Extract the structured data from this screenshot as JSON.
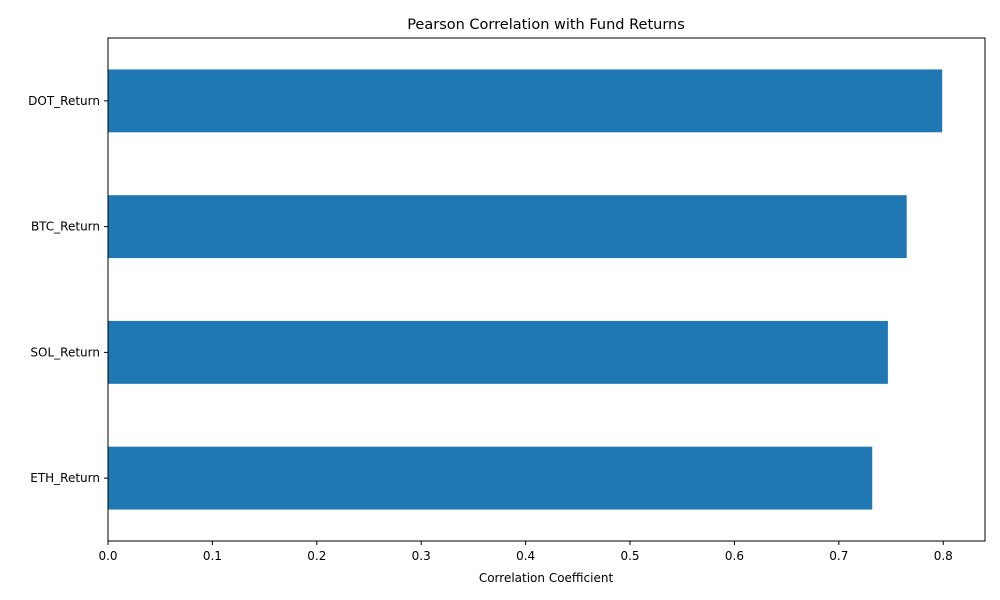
{
  "chart_data": {
    "type": "bar",
    "orientation": "horizontal",
    "title": "Pearson Correlation with Fund Returns",
    "xlabel": "Correlation Coefficient",
    "ylabel": "",
    "categories": [
      "DOT_Return",
      "BTC_Return",
      "SOL_Return",
      "ETH_Return"
    ],
    "values": [
      0.799,
      0.765,
      0.747,
      0.732
    ],
    "xlim": [
      0,
      0.84
    ],
    "xticks": [
      "0.0",
      "0.1",
      "0.2",
      "0.3",
      "0.4",
      "0.5",
      "0.6",
      "0.7",
      "0.8"
    ],
    "grid": false,
    "legend": "none",
    "bar_color": "#1f77b4"
  }
}
